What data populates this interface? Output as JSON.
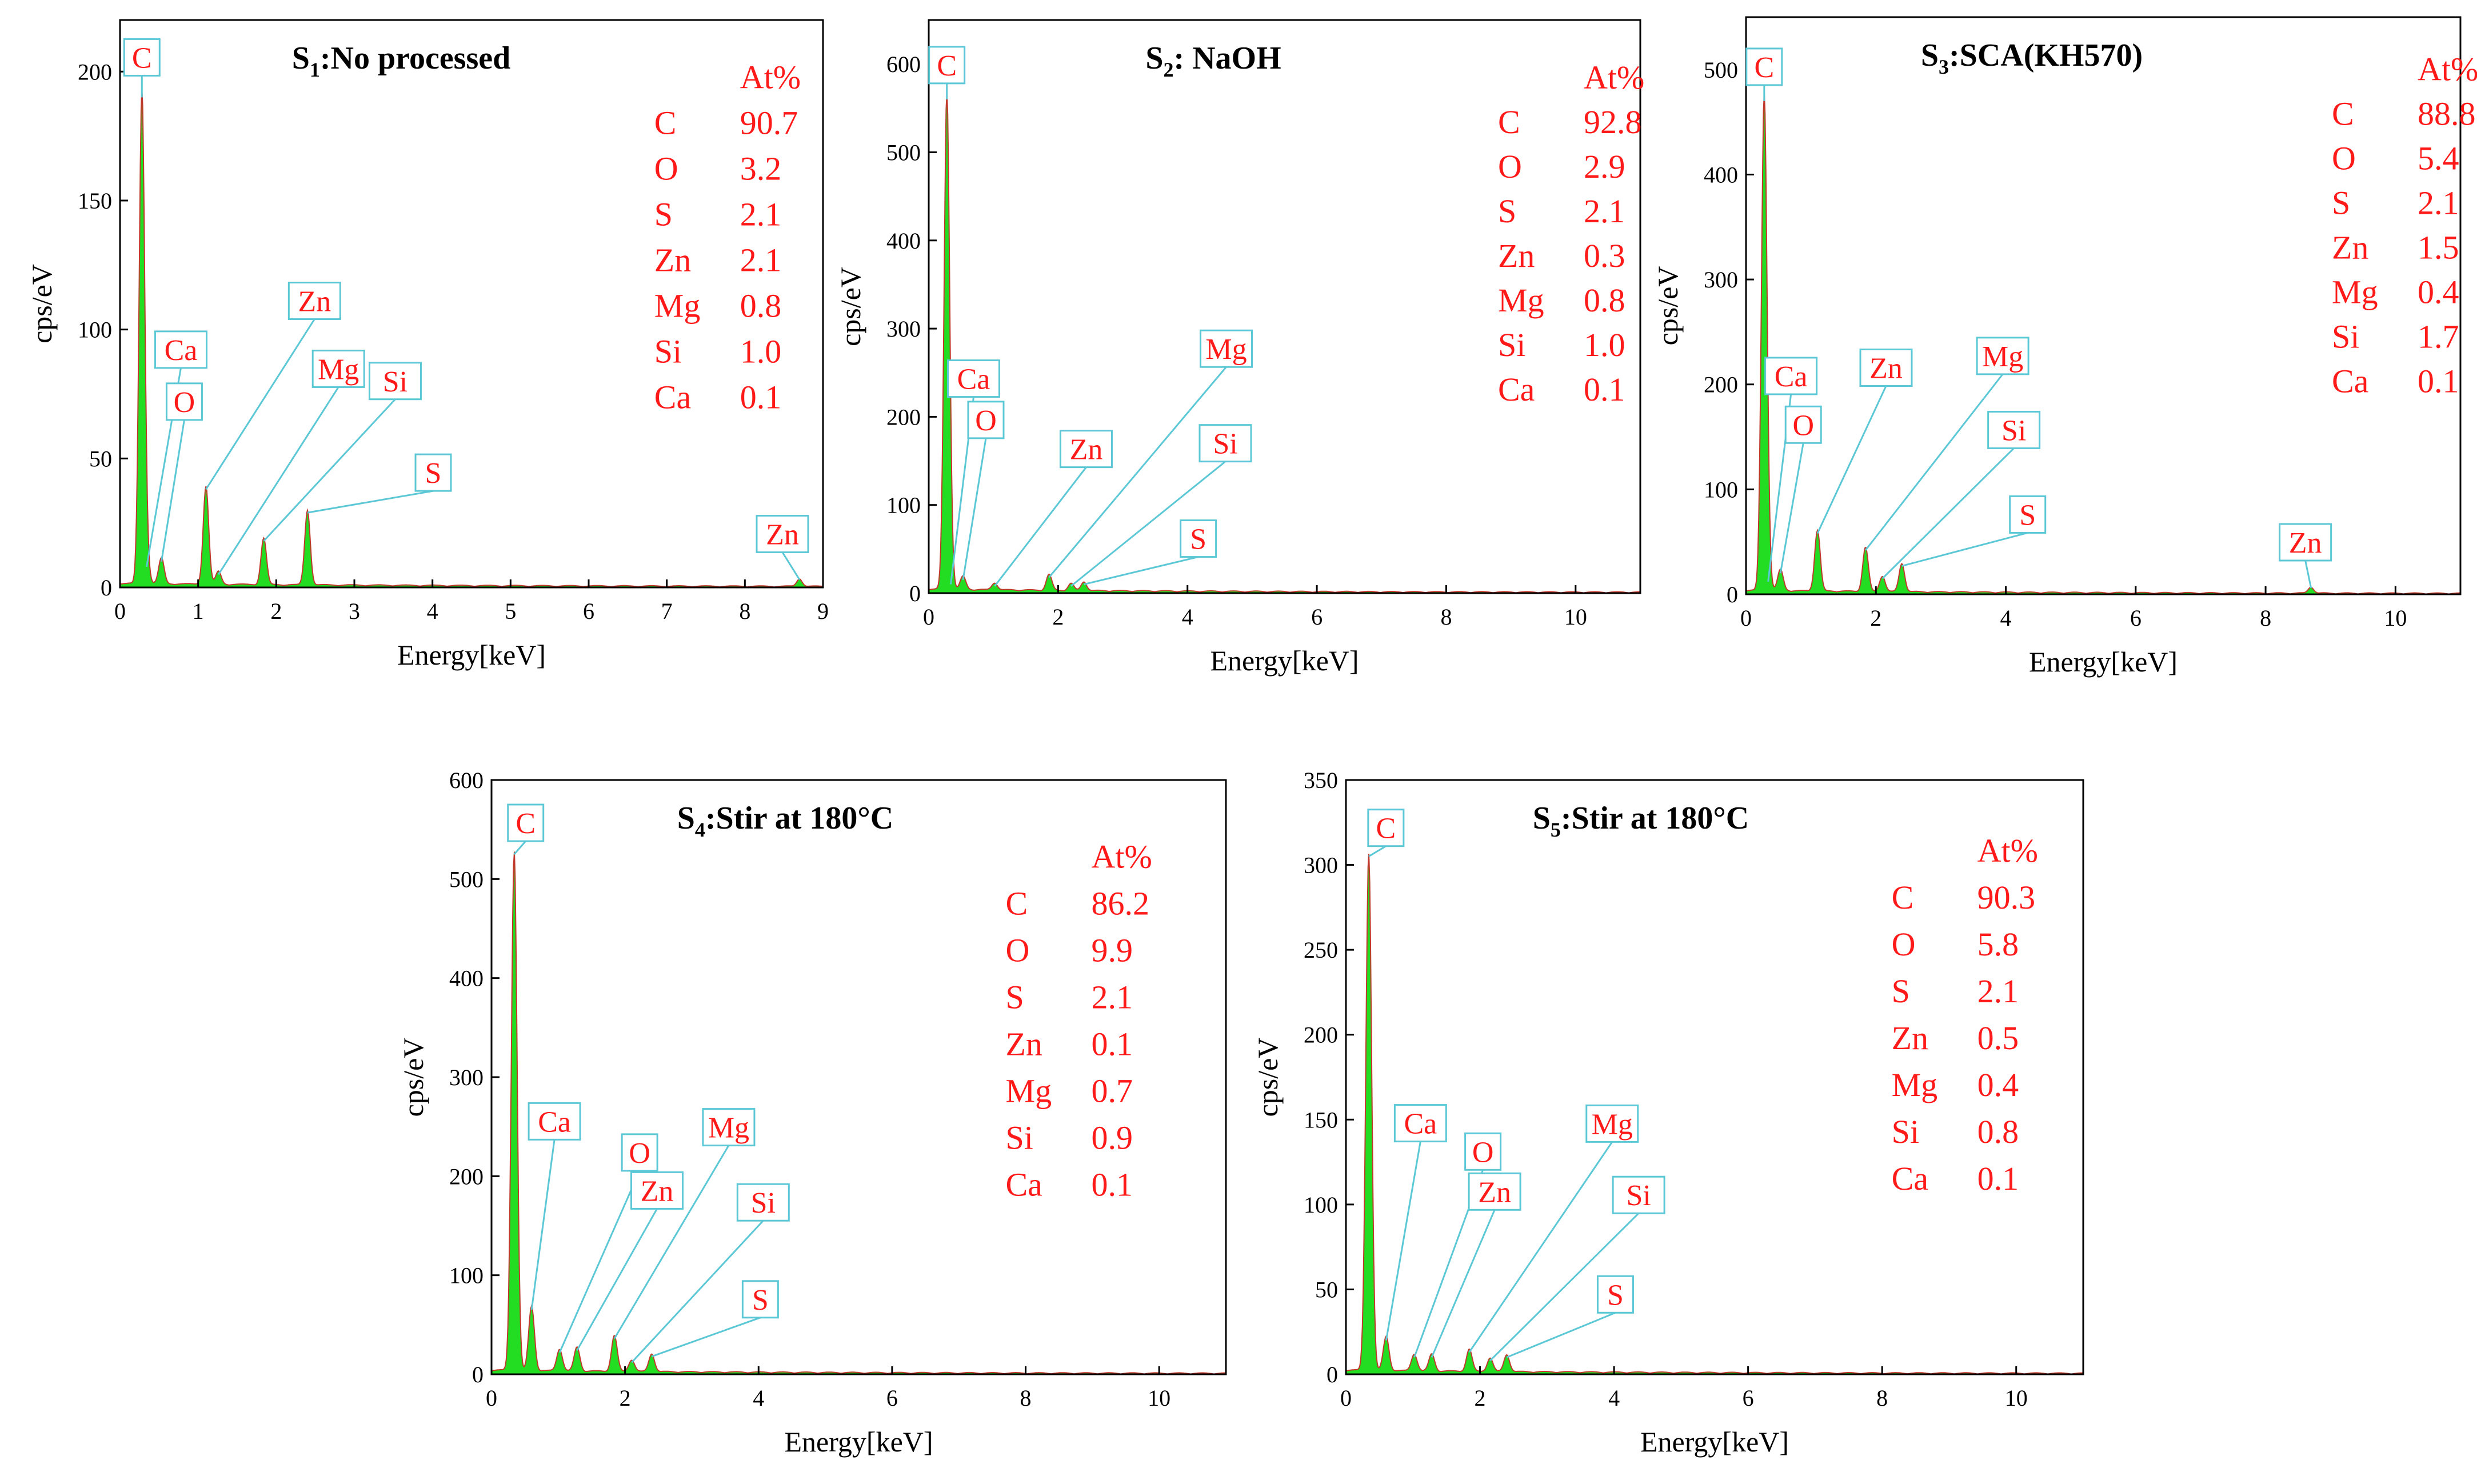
{
  "chart_data": [
    {
      "type": "area",
      "title": {
        "prefix": "S",
        "sub": "1",
        "rest": ":No processed"
      },
      "xlabel": "Energy[keV]",
      "ylabel": "cps/eV",
      "xlim": [
        0,
        9
      ],
      "ylim": [
        0,
        220
      ],
      "xticks": [
        0,
        1,
        2,
        3,
        4,
        5,
        6,
        7,
        8,
        9
      ],
      "yticks": [
        0,
        50,
        100,
        150,
        200
      ],
      "table_header": "At%",
      "table": [
        {
          "element": "C",
          "value": "90.7"
        },
        {
          "element": "O",
          "value": "3.2"
        },
        {
          "element": "S",
          "value": "2.1"
        },
        {
          "element": "Zn",
          "value": "2.1"
        },
        {
          "element": "Mg",
          "value": "0.8"
        },
        {
          "element": "Si",
          "value": "1.0"
        },
        {
          "element": "Ca",
          "value": "0.1"
        }
      ],
      "peaks": [
        {
          "label": "C",
          "energy": 0.28,
          "cps": 190
        },
        {
          "label": "Ca",
          "energy": 0.34,
          "cps": 8
        },
        {
          "label": "O",
          "energy": 0.53,
          "cps": 10
        },
        {
          "label": "Zn",
          "energy": 1.1,
          "cps": 38
        },
        {
          "label": "Mg",
          "energy": 1.26,
          "cps": 5
        },
        {
          "label": "Si",
          "energy": 1.84,
          "cps": 18
        },
        {
          "label": "S",
          "energy": 2.4,
          "cps": 29
        },
        {
          "label": "Zn",
          "energy": 8.7,
          "cps": 3
        }
      ]
    },
    {
      "type": "area",
      "title": {
        "prefix": "S",
        "sub": "2",
        "rest": ": NaOH"
      },
      "xlabel": "Energy[keV]",
      "ylabel": "cps/eV",
      "xlim": [
        0,
        11
      ],
      "ylim": [
        0,
        650
      ],
      "xticks": [
        0,
        2,
        4,
        6,
        8,
        10
      ],
      "yticks": [
        0,
        100,
        200,
        300,
        400,
        500,
        600
      ],
      "table_header": "At%",
      "table": [
        {
          "element": "C",
          "value": "92.8"
        },
        {
          "element": "O",
          "value": "2.9"
        },
        {
          "element": "S",
          "value": "2.1"
        },
        {
          "element": "Zn",
          "value": "0.3"
        },
        {
          "element": "Mg",
          "value": "0.8"
        },
        {
          "element": "Si",
          "value": "1.0"
        },
        {
          "element": "Ca",
          "value": "0.1"
        }
      ],
      "peaks": [
        {
          "label": "C",
          "energy": 0.28,
          "cps": 560
        },
        {
          "label": "Ca",
          "energy": 0.34,
          "cps": 10
        },
        {
          "label": "O",
          "energy": 0.53,
          "cps": 15
        },
        {
          "label": "Zn",
          "energy": 1.02,
          "cps": 8
        },
        {
          "label": "Mg",
          "energy": 1.86,
          "cps": 18
        },
        {
          "label": "Si",
          "energy": 2.2,
          "cps": 8
        },
        {
          "label": "S",
          "energy": 2.4,
          "cps": 10
        }
      ]
    },
    {
      "type": "area",
      "title": {
        "prefix": "S",
        "sub": "3",
        "rest": ":SCA(KH570)"
      },
      "xlabel": "Energy[keV]",
      "ylabel": "cps/eV",
      "xlim": [
        0,
        11
      ],
      "ylim": [
        0,
        550
      ],
      "xticks": [
        0,
        2,
        4,
        6,
        8,
        10
      ],
      "yticks": [
        0,
        100,
        200,
        300,
        400,
        500
      ],
      "table_header": "At%",
      "table": [
        {
          "element": "C",
          "value": "88.8"
        },
        {
          "element": "O",
          "value": "5.4"
        },
        {
          "element": "S",
          "value": "2.1"
        },
        {
          "element": "Zn",
          "value": "1.5"
        },
        {
          "element": "Mg",
          "value": "0.4"
        },
        {
          "element": "Si",
          "value": "1.7"
        },
        {
          "element": "Ca",
          "value": "0.1"
        }
      ],
      "peaks": [
        {
          "label": "C",
          "energy": 0.28,
          "cps": 470
        },
        {
          "label": "Ca",
          "energy": 0.34,
          "cps": 12
        },
        {
          "label": "O",
          "energy": 0.53,
          "cps": 20
        },
        {
          "label": "Zn",
          "energy": 1.1,
          "cps": 58
        },
        {
          "label": "Mg",
          "energy": 1.84,
          "cps": 42
        },
        {
          "label": "Si",
          "energy": 2.1,
          "cps": 15
        },
        {
          "label": "S",
          "energy": 2.4,
          "cps": 27
        },
        {
          "label": "Zn",
          "energy": 8.7,
          "cps": 6
        }
      ]
    },
    {
      "type": "area",
      "title": {
        "prefix": "S",
        "sub": "4",
        "rest": ":Stir at 180°C"
      },
      "xlabel": "Energy[keV]",
      "ylabel": "cps/eV",
      "xlim": [
        0,
        11
      ],
      "ylim": [
        0,
        600
      ],
      "xticks": [
        0,
        2,
        4,
        6,
        8,
        10
      ],
      "yticks": [
        0,
        100,
        200,
        300,
        400,
        500,
        600
      ],
      "table_header": "At%",
      "table": [
        {
          "element": "C",
          "value": "86.2"
        },
        {
          "element": "O",
          "value": "9.9"
        },
        {
          "element": "S",
          "value": "2.1"
        },
        {
          "element": "Zn",
          "value": "0.1"
        },
        {
          "element": "Mg",
          "value": "0.7"
        },
        {
          "element": "Si",
          "value": "0.9"
        },
        {
          "element": "Ca",
          "value": "0.1"
        }
      ],
      "peaks": [
        {
          "label": "C",
          "energy": 0.34,
          "cps": 525
        },
        {
          "label": "Ca",
          "energy": 0.6,
          "cps": 65
        },
        {
          "label": "O",
          "energy": 1.02,
          "cps": 22
        },
        {
          "label": "Zn",
          "energy": 1.28,
          "cps": 24
        },
        {
          "label": "Mg",
          "energy": 1.84,
          "cps": 36
        },
        {
          "label": "Si",
          "energy": 2.1,
          "cps": 12
        },
        {
          "label": "S",
          "energy": 2.4,
          "cps": 18
        }
      ]
    },
    {
      "type": "area",
      "title": {
        "prefix": "S",
        "sub": "5",
        "rest": ":Stir at 180°C"
      },
      "xlabel": "Energy[keV]",
      "ylabel": "cps/eV",
      "xlim": [
        0,
        11
      ],
      "ylim": [
        0,
        350
      ],
      "xticks": [
        0,
        2,
        4,
        6,
        8,
        10
      ],
      "yticks": [
        0,
        50,
        100,
        150,
        200,
        250,
        300,
        350
      ],
      "table_header": "At%",
      "table": [
        {
          "element": "C",
          "value": "90.3"
        },
        {
          "element": "O",
          "value": "5.8"
        },
        {
          "element": "S",
          "value": "2.1"
        },
        {
          "element": "Zn",
          "value": "0.5"
        },
        {
          "element": "Mg",
          "value": "0.4"
        },
        {
          "element": "Si",
          "value": "0.8"
        },
        {
          "element": "Ca",
          "value": "0.1"
        }
      ],
      "peaks": [
        {
          "label": "C",
          "energy": 0.34,
          "cps": 305
        },
        {
          "label": "Ca",
          "energy": 0.6,
          "cps": 20
        },
        {
          "label": "O",
          "energy": 1.02,
          "cps": 10
        },
        {
          "label": "Zn",
          "energy": 1.28,
          "cps": 10
        },
        {
          "label": "Mg",
          "energy": 1.84,
          "cps": 13
        },
        {
          "label": "Si",
          "energy": 2.15,
          "cps": 8
        },
        {
          "label": "S",
          "energy": 2.4,
          "cps": 10
        }
      ]
    }
  ]
}
